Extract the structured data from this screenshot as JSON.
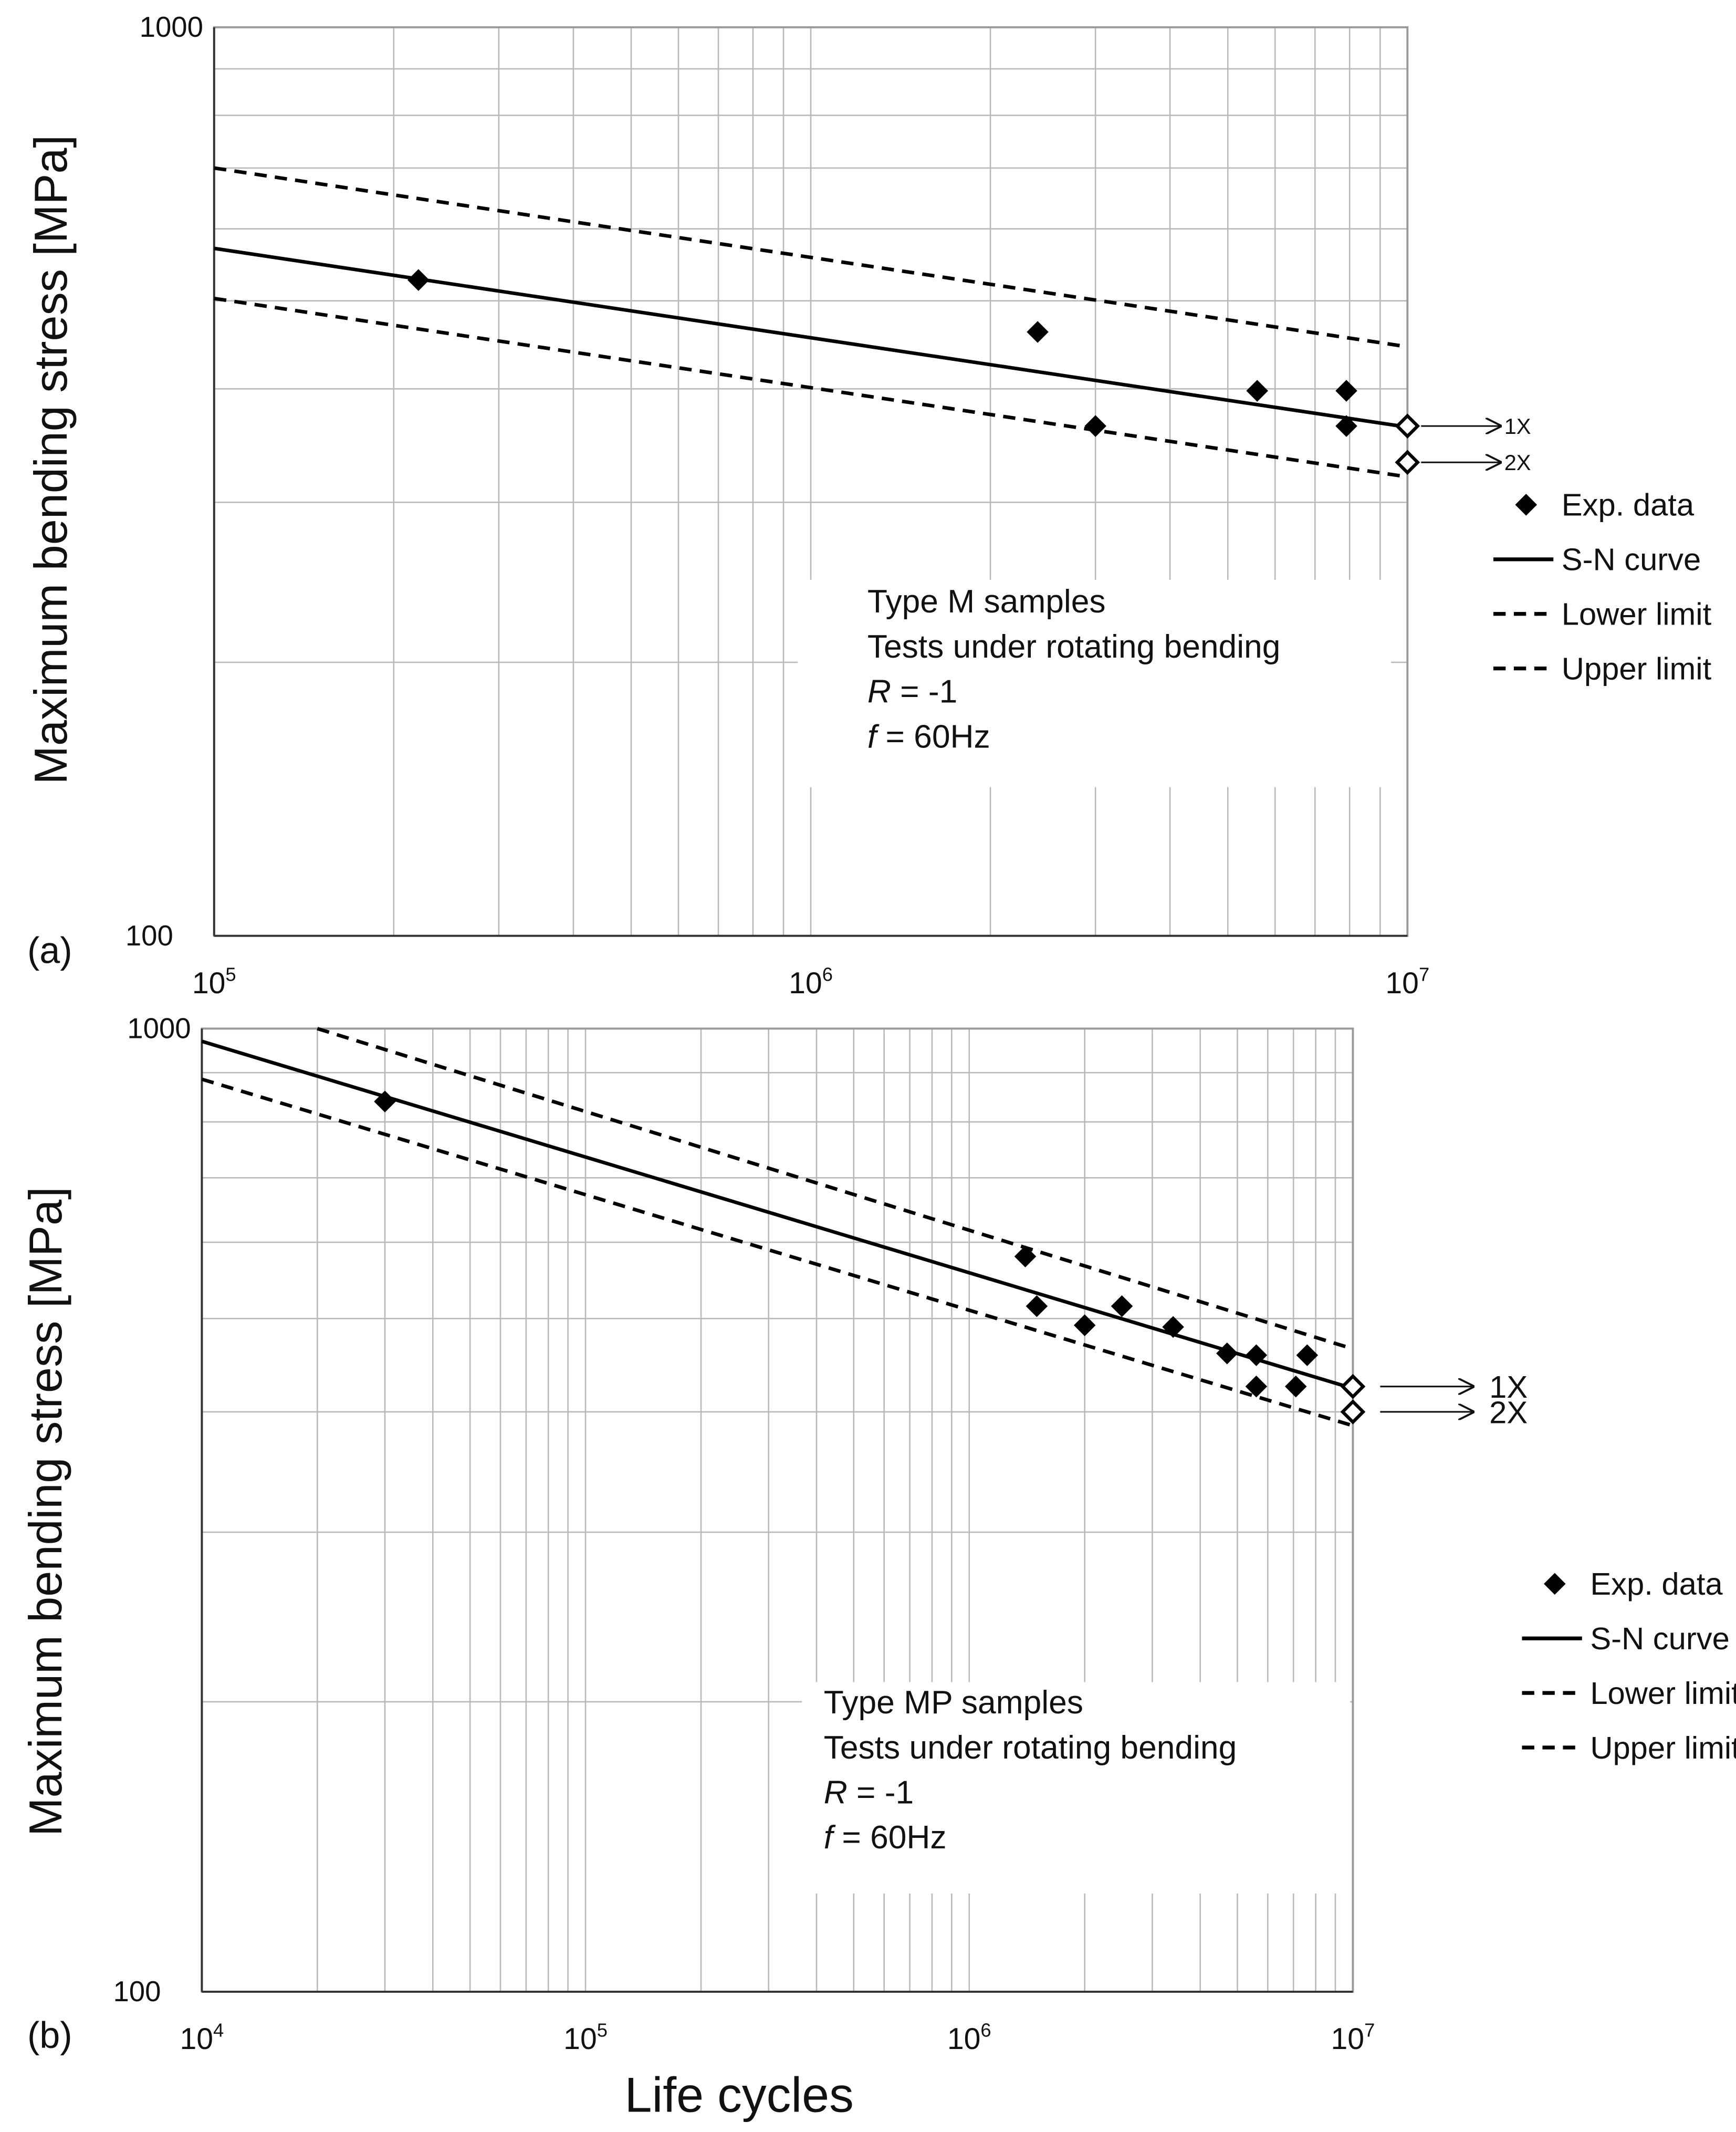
{
  "chart_data": [
    {
      "type": "scatter",
      "panel_label": "(a)",
      "ylabel": "Maximum bending stress [MPa]",
      "xlabel": "",
      "xscale": "log",
      "yscale": "log",
      "xlim": [
        100000,
        10000000
      ],
      "ylim": [
        100,
        1000
      ],
      "grid": true,
      "x_ticks": [
        {
          "base": "10",
          "exp": "5"
        },
        {
          "base": "10",
          "exp": "6"
        },
        {
          "base": "10",
          "exp": "7"
        }
      ],
      "y_ticks": [
        "100",
        "1000"
      ],
      "legend": {
        "placement": "right",
        "entries": [
          "Exp. data",
          "S-N curve",
          "Lower limit",
          "Upper limit"
        ]
      },
      "annotation": {
        "title": "Type M samples",
        "line2": "Tests under rotating bending",
        "r_symbol": "R",
        "r_value": " = -1",
        "f_symbol": "f",
        "f_value": " = 60Hz"
      },
      "runout_labels": [
        "1X",
        "2X"
      ],
      "series": [
        {
          "name": "Exp. data",
          "kind": "points",
          "marker": "filled-diamond",
          "x": [
            220000,
            2400000,
            3000000,
            5600000,
            7900000,
            7900000
          ],
          "y": [
            527,
            462,
            364,
            398,
            398,
            364
          ]
        },
        {
          "name": "S-N curve",
          "kind": "line",
          "style": "solid",
          "x": [
            100000,
            10000000
          ],
          "y": [
            571,
            363
          ]
        },
        {
          "name": "Lower limit",
          "kind": "line",
          "style": "dashed",
          "x": [
            100000,
            10000000
          ],
          "y": [
            503,
            320
          ]
        },
        {
          "name": "Upper limit",
          "kind": "line",
          "style": "dashed",
          "x": [
            100000,
            10000000
          ],
          "y": [
            700,
            445
          ]
        },
        {
          "name": "Run-out",
          "kind": "points",
          "marker": "open-diamond",
          "x": [
            10000000,
            10000000
          ],
          "y": [
            364,
            332
          ]
        }
      ]
    },
    {
      "type": "scatter",
      "panel_label": "(b)",
      "ylabel": "Maximum bending stress [MPa]",
      "xlabel": "Life cycles",
      "xscale": "log",
      "yscale": "log",
      "xlim": [
        10000,
        10000000
      ],
      "ylim": [
        100,
        1000
      ],
      "grid": true,
      "x_ticks": [
        {
          "base": "10",
          "exp": "4"
        },
        {
          "base": "10",
          "exp": "5"
        },
        {
          "base": "10",
          "exp": "6"
        },
        {
          "base": "10",
          "exp": "7"
        }
      ],
      "y_ticks": [
        "100",
        "1000"
      ],
      "legend": {
        "placement": "right",
        "entries": [
          "Exp. data",
          "S-N curve",
          "Lower limit",
          "Upper limit"
        ]
      },
      "annotation": {
        "title": "Type MP samples",
        "line2": "Tests under rotating bending",
        "r_symbol": "R",
        "r_value": " = -1",
        "f_symbol": "f",
        "f_value": " = 60Hz"
      },
      "runout_labels": [
        "1X",
        "2X"
      ],
      "series": [
        {
          "name": "Exp. data",
          "kind": "points",
          "marker": "filled-diamond",
          "x": [
            30000,
            1400000,
            1500000,
            2000000,
            2500000,
            3400000,
            4700000,
            5600000,
            5600000,
            7100000,
            7600000
          ],
          "y": [
            840,
            580,
            515,
            492,
            515,
            490,
            460,
            458,
            425,
            425,
            458
          ]
        },
        {
          "name": "S-N curve",
          "kind": "line",
          "style": "solid",
          "x": [
            10000,
            10000000
          ],
          "y": [
            970,
            423
          ]
        },
        {
          "name": "Lower limit",
          "kind": "line",
          "style": "dashed",
          "x": [
            10000,
            10000000
          ],
          "y": [
            886,
            387
          ]
        },
        {
          "name": "Upper limit",
          "kind": "line",
          "style": "dashed",
          "x": [
            20000,
            10000000
          ],
          "y": [
            1000,
            465
          ]
        },
        {
          "name": "Run-out",
          "kind": "points",
          "marker": "open-diamond",
          "x": [
            10000000,
            10000000
          ],
          "y": [
            425,
            400
          ]
        }
      ]
    }
  ]
}
